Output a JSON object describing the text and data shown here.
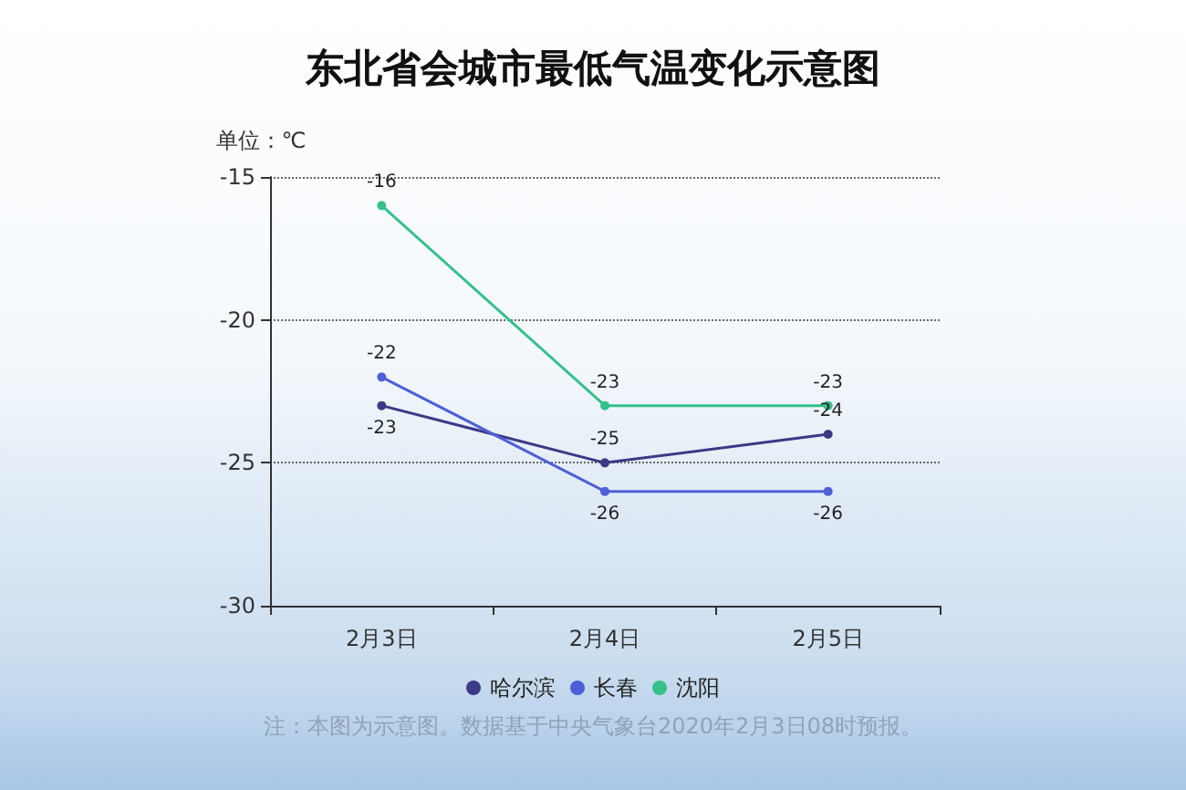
{
  "chart_data": {
    "type": "line",
    "title": "东北省会城市最低气温变化示意图",
    "ylabel": "单位：℃",
    "categories": [
      "2月3日",
      "2月4日",
      "2月5日"
    ],
    "series": [
      {
        "name": "哈尔滨",
        "color": "#3b3a86",
        "values": [
          -23,
          -25,
          -24
        ]
      },
      {
        "name": "长春",
        "color": "#4f5fd8",
        "values": [
          -22,
          -26,
          -26
        ]
      },
      {
        "name": "沈阳",
        "color": "#35c08c",
        "values": [
          -16,
          -23,
          -23
        ]
      }
    ],
    "ylim": [
      -30,
      -15
    ],
    "yticks": [
      -30,
      -25,
      -20,
      -15
    ],
    "grid": "y",
    "legend": "bottom",
    "marker": "circle",
    "line_style": "solid",
    "data_labels": true,
    "annotations": [
      "注：本图为示意图。数据基于中央气象台2020年2月3日08时预报。"
    ]
  }
}
